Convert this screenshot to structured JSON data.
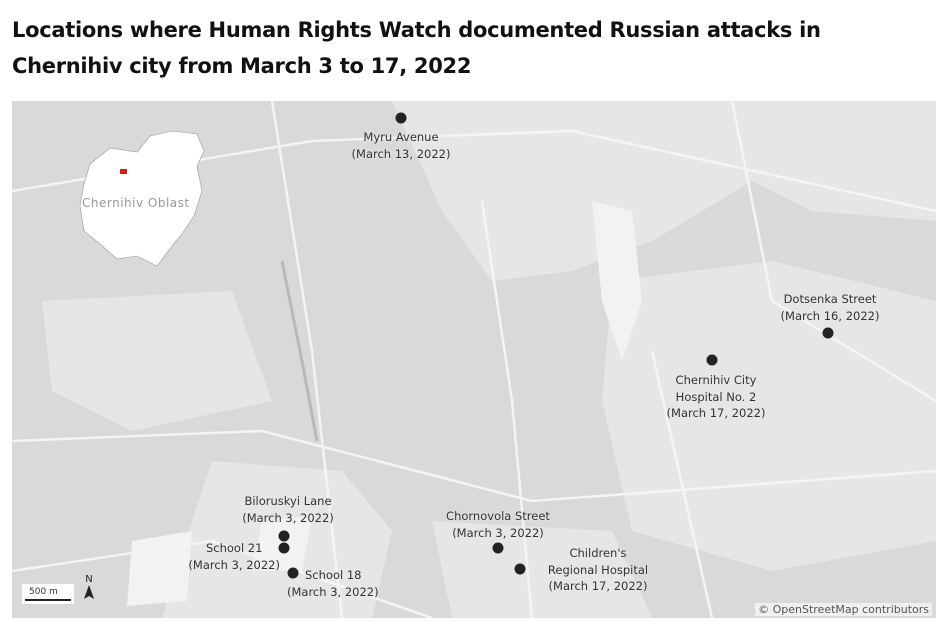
{
  "title": "Locations where Human Rights Watch documented Russian attacks in Chernihiv city from March 3 to 17, 2022",
  "inset": {
    "label": "Chernihiv Oblast",
    "highlight_color": "#e0191f"
  },
  "markers": [
    {
      "name": "Myru Avenue",
      "date": "(March 13, 2022)"
    },
    {
      "name": "Dotsenka Street",
      "date": "(March 16, 2022)"
    },
    {
      "name_line1": "Chernihiv City",
      "name_line2": "Hospital No. 2",
      "date": "(March 17, 2022)"
    },
    {
      "name": "Biloruskyi Lane",
      "date": "(March 3, 2022)"
    },
    {
      "name": "School 21",
      "date": "(March 3, 2022)"
    },
    {
      "name": "School 18",
      "date": "(March 3, 2022)"
    },
    {
      "name": "Chornovola Street",
      "date": "(March 3, 2022)"
    },
    {
      "name_line1": "Children's",
      "name_line2": "Regional Hospital",
      "date": "(March 17, 2022)"
    }
  ],
  "scale_bar": "500 m",
  "north_arrow": "N",
  "attribution": "© OpenStreetMap contributors",
  "colors": {
    "marker": "#222222",
    "map_bg": "#d9d9d9"
  }
}
